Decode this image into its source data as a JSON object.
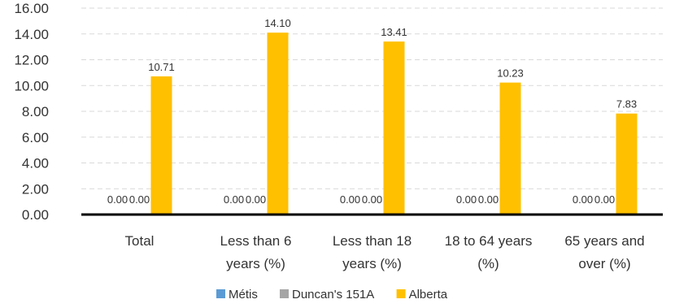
{
  "chart_data": {
    "type": "bar",
    "title": "",
    "xlabel": "",
    "ylabel": "",
    "ylim": [
      0,
      16
    ],
    "yticks": [
      "0.00",
      "2.00",
      "4.00",
      "6.00",
      "8.00",
      "10.00",
      "12.00",
      "14.00",
      "16.00"
    ],
    "grid": true,
    "legend_position": "bottom",
    "categories": [
      [
        "Total"
      ],
      [
        "Less than 6",
        "years (%)"
      ],
      [
        "Less than 18",
        "years (%)"
      ],
      [
        "18 to 64 years",
        "(%)"
      ],
      [
        "65 years and",
        "over (%)"
      ]
    ],
    "series": [
      {
        "name": "Métis",
        "color": "#5B9BD5",
        "values": [
          0.0,
          0.0,
          0.0,
          0.0,
          0.0
        ],
        "labels": [
          "0.00",
          "0.00",
          "0.00",
          "0.00",
          "0.00"
        ]
      },
      {
        "name": "Duncan's 151A",
        "color": "#A5A5A5",
        "values": [
          0.0,
          0.0,
          0.0,
          0.0,
          0.0
        ],
        "labels": [
          "0.00",
          "0.00",
          "0.00",
          "0.00",
          "0.00"
        ]
      },
      {
        "name": "Alberta",
        "color": "#FFC000",
        "values": [
          10.71,
          14.1,
          13.41,
          10.23,
          7.83
        ],
        "labels": [
          "10.71",
          "14.10",
          "13.41",
          "10.23",
          "7.83"
        ]
      }
    ]
  }
}
